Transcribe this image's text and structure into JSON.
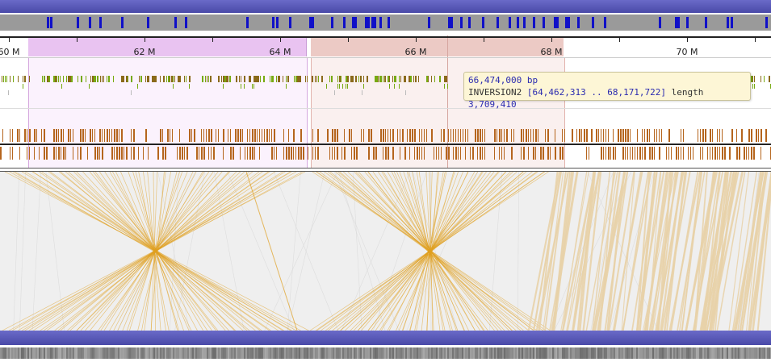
{
  "colors": {
    "accent_bar": "#5a5ab8",
    "overview_bg": "#9a9a9a",
    "overview_feature": "#1010c8",
    "gene": "#b5651d",
    "feature_green": "#77aa11",
    "feature_brown": "#8a6a1a",
    "synteny_line": "#e0a020",
    "synteny_parallel": "#e8d2a8",
    "highlight_purple": "#e9c3f1",
    "highlight_red": "#eccac5",
    "tooltip_bg": "#fdf6d6"
  },
  "ruler": {
    "ticks": [
      {
        "label": "60 M",
        "value": 60
      },
      {
        "label": "62 M",
        "value": 62
      },
      {
        "label": "64 M",
        "value": 64
      },
      {
        "label": "66 M",
        "value": 66
      },
      {
        "label": "68 M",
        "value": 68
      },
      {
        "label": "70 M",
        "value": 70
      }
    ]
  },
  "tooltip": {
    "position": "66,474,000 bp",
    "feature_name": "INVERSION2",
    "range": "[64,462,313 .. 68,171,722]",
    "length_label": "length",
    "length_value": "3,709,410"
  }
}
